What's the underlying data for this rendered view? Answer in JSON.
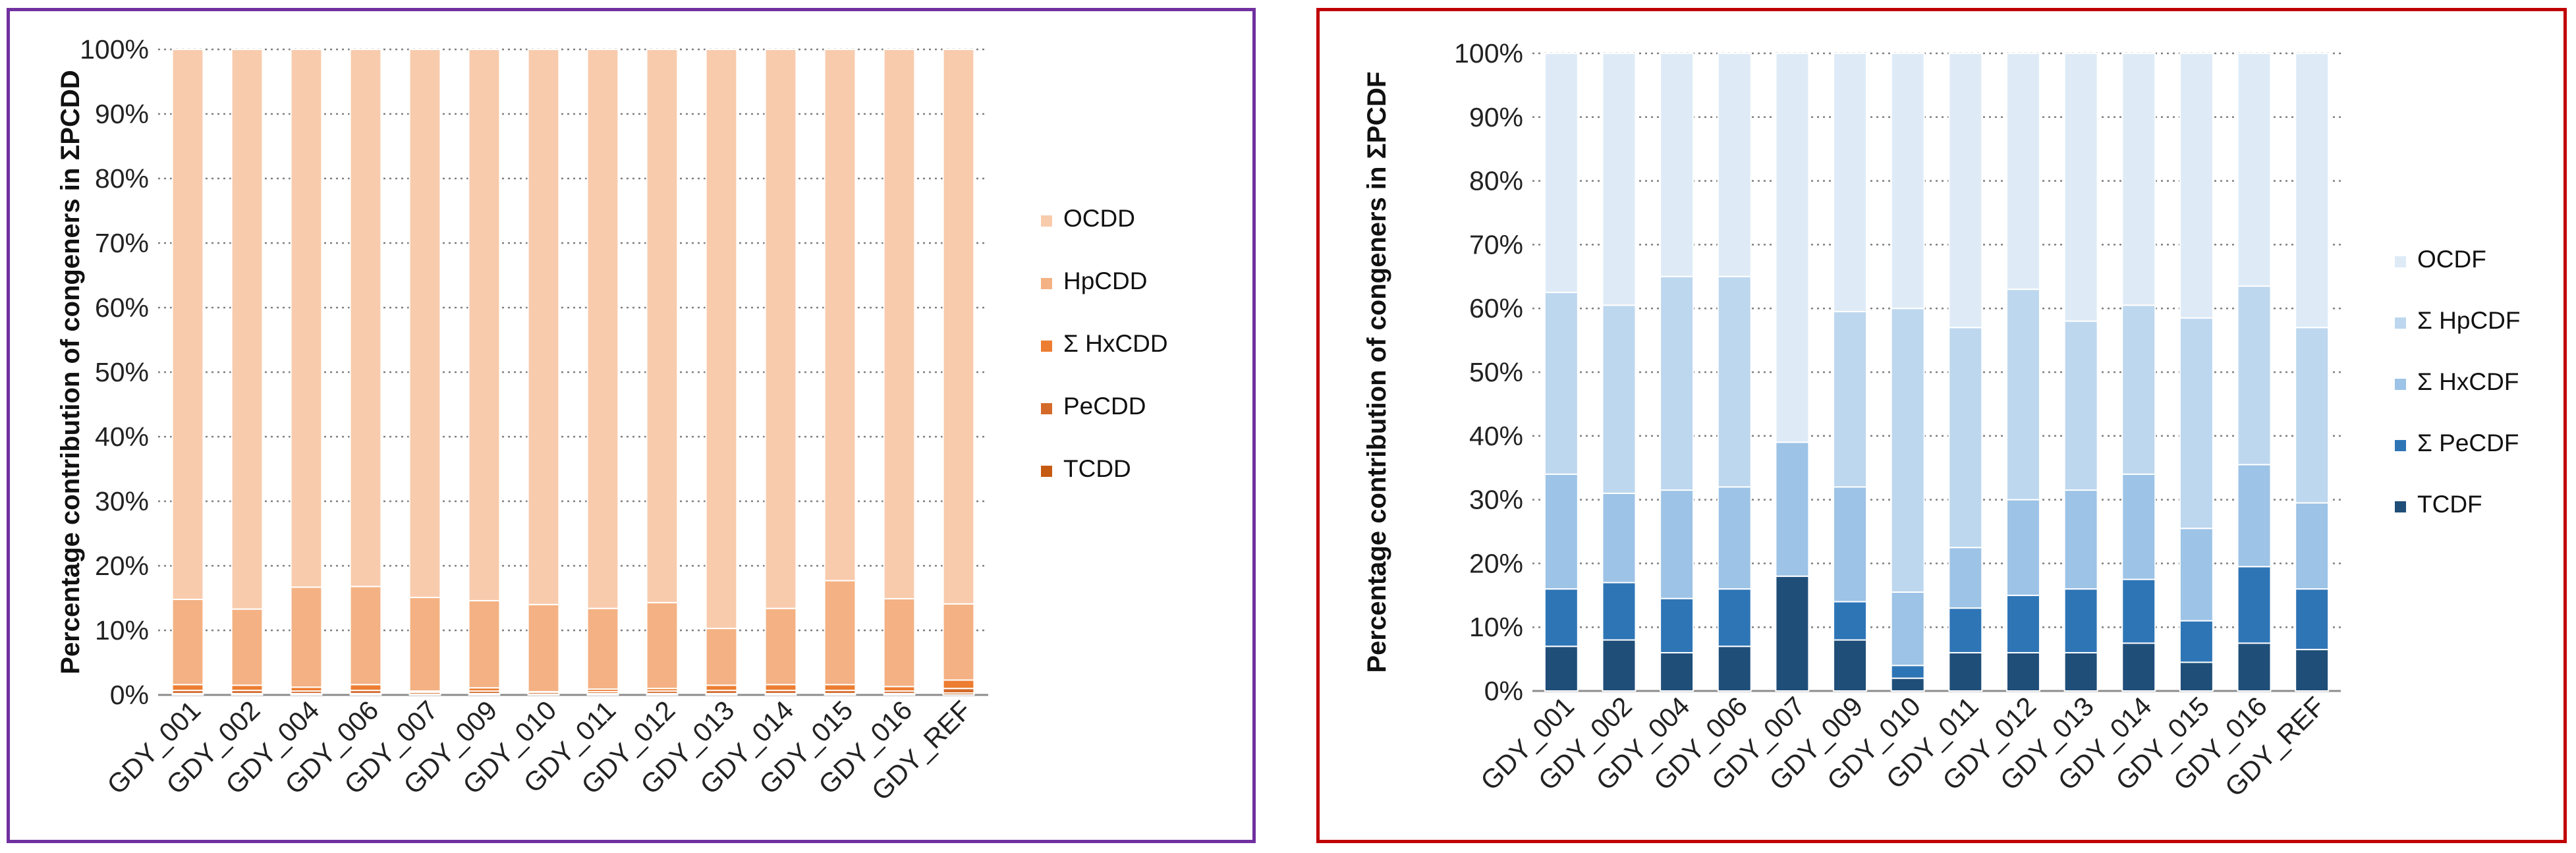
{
  "chart_data": [
    {
      "type": "bar",
      "stacked": true,
      "percent": true,
      "ylabel": "Percentage contribution of congeners in ΣPCDD",
      "ylim": [
        0,
        100
      ],
      "yticks": [
        "0%",
        "10%",
        "20%",
        "30%",
        "40%",
        "50%",
        "60%",
        "70%",
        "80%",
        "90%",
        "100%"
      ],
      "grid": true,
      "legend_position": "right",
      "categories": [
        "GDY_001",
        "GDY_002",
        "GDY_004",
        "GDY_006",
        "GDY_007",
        "GDY_009",
        "GDY_010",
        "GDY_011",
        "GDY_012",
        "GDY_013",
        "GDY_014",
        "GDY_015",
        "GDY_016",
        "GDY_REF"
      ],
      "series": [
        {
          "name": "TCDD",
          "color": "#c55a11",
          "values": [
            0.2,
            0.2,
            0.2,
            0.2,
            0.1,
            0.2,
            0.1,
            0.2,
            0.2,
            0.2,
            0.2,
            0.2,
            0.2,
            0.3
          ]
        },
        {
          "name": "PeCDD",
          "color": "#d46a2a",
          "values": [
            0.5,
            0.5,
            0.4,
            0.5,
            0.3,
            0.4,
            0.3,
            0.3,
            0.4,
            0.5,
            0.5,
            0.5,
            0.4,
            0.7
          ]
        },
        {
          "name": "Σ HxCDD",
          "color": "#ed7d31",
          "values": [
            0.9,
            0.8,
            0.6,
            0.9,
            0.2,
            0.5,
            0.1,
            0.4,
            0.4,
            0.8,
            0.9,
            0.9,
            0.7,
            1.3
          ]
        },
        {
          "name": "HpCDD",
          "color": "#f4b183",
          "values": [
            13.2,
            11.8,
            15.5,
            15.2,
            14.5,
            13.5,
            13.5,
            12.5,
            13.3,
            8.8,
            11.8,
            16.1,
            13.6,
            11.8
          ]
        },
        {
          "name": "OCDD",
          "color": "#f8cbad",
          "values": [
            85.2,
            86.7,
            83.3,
            83.2,
            84.9,
            85.4,
            86.0,
            86.6,
            85.7,
            89.7,
            86.6,
            82.3,
            85.1,
            85.9
          ]
        }
      ]
    },
    {
      "type": "bar",
      "stacked": true,
      "percent": true,
      "ylabel": "Percentage contribution of congeners in ΣPCDF",
      "ylim": [
        0,
        100
      ],
      "yticks": [
        "0%",
        "10%",
        "20%",
        "30%",
        "40%",
        "50%",
        "60%",
        "70%",
        "80%",
        "90%",
        "100%"
      ],
      "grid": true,
      "legend_position": "right",
      "categories": [
        "GDY_001",
        "GDY_002",
        "GDY_004",
        "GDY_006",
        "GDY_007",
        "GDY_009",
        "GDY_010",
        "GDY_011",
        "GDY_012",
        "GDY_013",
        "GDY_014",
        "GDY_015",
        "GDY_016",
        "GDY_REF"
      ],
      "series": [
        {
          "name": "TCDF",
          "color": "#1f4e79",
          "values": [
            7,
            8,
            6,
            7,
            18,
            8,
            2,
            6,
            6,
            6,
            7.5,
            4.5,
            7.5,
            6.5
          ]
        },
        {
          "name": "Σ PeCDF",
          "color": "#2e75b6",
          "values": [
            9,
            9,
            8.5,
            9,
            0,
            6,
            2,
            7,
            9,
            10,
            10,
            6.5,
            12,
            9.5
          ]
        },
        {
          "name": "Σ HxCDF",
          "color": "#9dc3e6",
          "values": [
            18,
            14,
            17,
            16,
            21,
            18,
            11.5,
            9.5,
            15,
            15.5,
            16.5,
            14.5,
            16,
            13.5
          ]
        },
        {
          "name": "Σ HpCDF",
          "color": "#bdd7ee",
          "values": [
            28.5,
            29.5,
            33.5,
            33,
            0,
            27.5,
            44.5,
            34.5,
            33,
            26.5,
            26.5,
            33,
            28,
            27.5
          ]
        },
        {
          "name": "OCDF",
          "color": "#deebf7",
          "values": [
            37.5,
            39.5,
            35,
            35,
            61,
            40.5,
            40,
            43,
            37,
            42,
            39.5,
            41.5,
            36.5,
            43
          ]
        }
      ]
    }
  ]
}
